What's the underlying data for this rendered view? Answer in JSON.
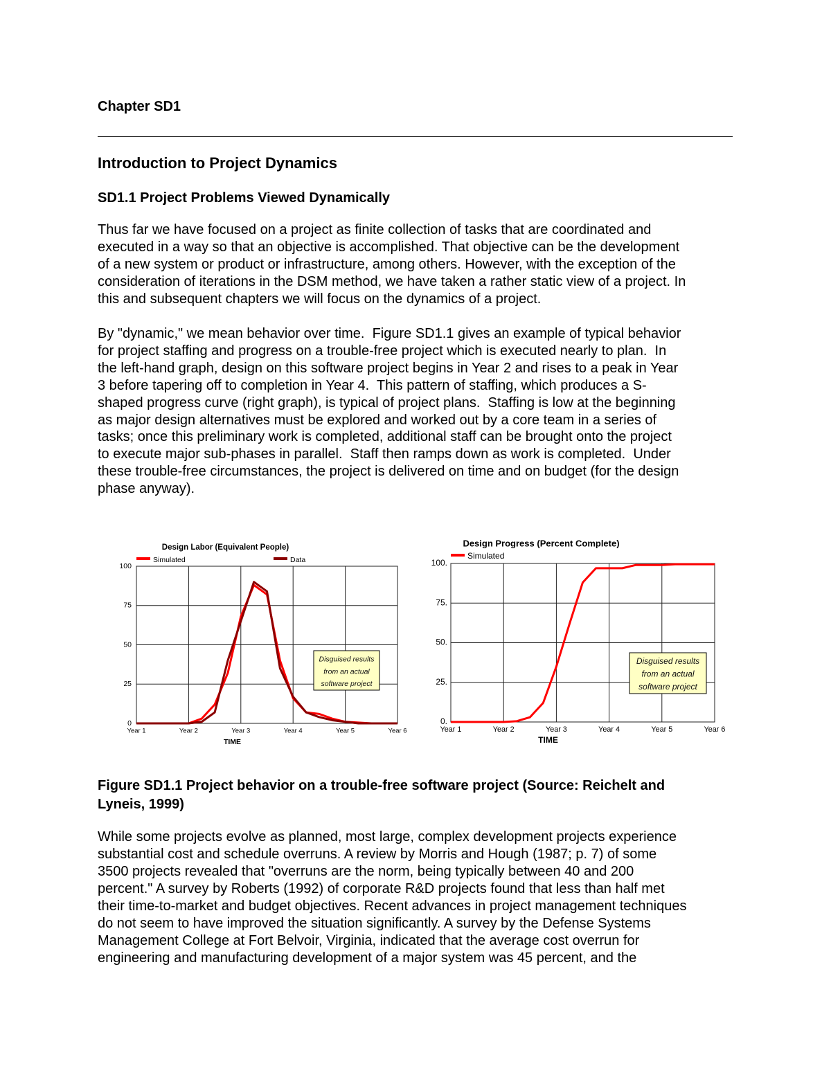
{
  "chapter": "Chapter SD1",
  "title": "Introduction to Project Dynamics",
  "section": "SD1.1 Project Problems Viewed Dynamically",
  "paragraph_1": [
    "Thus far we have focused on a project as finite collection of tasks that are coordinated and",
    "executed in a way so that an objective is accomplished. That objective can be the development",
    "of a new system or product or infrastructure, among others. However, with the exception of the",
    "consideration of iterations in the DSM method, we have taken a rather static view of a project. In",
    "this and subsequent chapters we will focus on the dynamics of a project."
  ],
  "paragraph_2": [
    "By \"dynamic,\" we mean behavior over time.  Figure SD1.1 gives an example of typical behavior",
    "for project staffing and progress on a trouble-free project which is executed nearly to plan.  In",
    "the left-hand graph, design on this software project begins in Year 2 and rises to a peak in Year",
    "3 before tapering off to completion in Year 4.  This pattern of staffing, which produces a S-",
    "shaped progress curve (right graph), is typical of project plans.  Staffing is low at the beginning",
    "as major design alternatives must be explored and worked out by a core team in a series of",
    "tasks; once this preliminary work is completed, additional staff can be brought onto the project",
    "to execute major sub-phases in parallel.  Staff then ramps down as work is completed.  Under",
    "these trouble-free circumstances, the project is delivered on time and on budget (for the design",
    "phase anyway)."
  ],
  "chart_data": [
    {
      "type": "line",
      "title": "Design Labor (Equivalent People)",
      "x_label": "TIME",
      "x": [
        1,
        1.25,
        1.5,
        1.75,
        2,
        2.25,
        2.5,
        2.75,
        3,
        3.25,
        3.5,
        3.75,
        4,
        4.25,
        4.5,
        4.75,
        5,
        5.25,
        5.5,
        5.75,
        6
      ],
      "xlim": [
        1,
        6
      ],
      "xticks": [
        {
          "value": 1,
          "label": "Year 1"
        },
        {
          "value": 2,
          "label": "Year 2"
        },
        {
          "value": 3,
          "label": "Year 3"
        },
        {
          "value": 4,
          "label": "Year 4"
        },
        {
          "value": 5,
          "label": "Year 5"
        },
        {
          "value": 6,
          "label": "Year 6"
        }
      ],
      "ylim": [
        0,
        100
      ],
      "yticks": [
        0,
        25,
        50,
        75,
        100
      ],
      "grid": true,
      "legend": "top",
      "series": [
        {
          "name": "Simulated",
          "color": "#ff0000",
          "values": [
            0,
            0,
            0,
            0,
            0,
            3,
            12,
            32,
            68,
            88,
            82,
            40,
            16,
            7,
            6,
            3,
            1,
            0.5,
            0,
            0,
            0
          ]
        },
        {
          "name": "Data",
          "color": "#8b0000",
          "values": [
            0,
            0,
            0,
            0,
            0,
            1,
            7,
            40,
            65,
            90,
            84,
            35,
            17,
            7,
            4,
            2,
            1,
            0,
            0,
            0,
            0
          ]
        }
      ],
      "annotation": [
        "Disguised results",
        "from an actual",
        "software project"
      ]
    },
    {
      "type": "line",
      "title": "Design Progress (Percent Complete)",
      "x_label": "TIME",
      "x": [
        1,
        1.25,
        1.5,
        1.75,
        2,
        2.25,
        2.5,
        2.75,
        3,
        3.25,
        3.5,
        3.75,
        4,
        4.25,
        4.5,
        4.75,
        5,
        5.25,
        5.5,
        5.75,
        6
      ],
      "xlim": [
        1,
        6
      ],
      "xticks": [
        {
          "value": 1,
          "label": "Year 1"
        },
        {
          "value": 2,
          "label": "Year 2"
        },
        {
          "value": 3,
          "label": "Year 3"
        },
        {
          "value": 4,
          "label": "Year 4"
        },
        {
          "value": 5,
          "label": "Year 5"
        },
        {
          "value": 6,
          "label": "Year 6"
        }
      ],
      "ylim": [
        0,
        100
      ],
      "yticks": [
        {
          "value": 0,
          "label": "0."
        },
        {
          "value": 25,
          "label": "25."
        },
        {
          "value": 50,
          "label": "50."
        },
        {
          "value": 75,
          "label": "75."
        },
        {
          "value": 100,
          "label": "100."
        }
      ],
      "grid": true,
      "legend": "top",
      "series": [
        {
          "name": "Simulated",
          "color": "#ff0000",
          "values": [
            0,
            0,
            0,
            0,
            0,
            0.5,
            3,
            12,
            35,
            62,
            88,
            97,
            97,
            97,
            99,
            99,
            99,
            99.5,
            99.5,
            99.5,
            99.5
          ]
        }
      ],
      "annotation": [
        "Disguised results",
        "from an actual",
        "software project"
      ]
    }
  ],
  "caption": [
    "Figure SD1.1 Project behavior on a trouble-free software project (Source: Reichelt and",
    "Lyneis, 1999)"
  ],
  "paragraph_3": [
    "While some projects evolve as planned, most large, complex development projects experience",
    "substantial cost and schedule overruns. A review by Morris and Hough (1987; p. 7) of some",
    "3500 projects revealed that \"overruns are the norm, being typically between 40 and 200",
    "percent.\" A survey by Roberts (1992) of corporate R&D projects found that less than half met",
    "their time-to-market and budget objectives. Recent advances in project management techniques",
    "do not seem to have improved the situation significantly. A survey by the Defense Systems",
    "Management College at Fort Belvoir, Virginia, indicated that the average cost overrun for",
    "engineering and manufacturing development of a major system was 45 percent, and the"
  ]
}
